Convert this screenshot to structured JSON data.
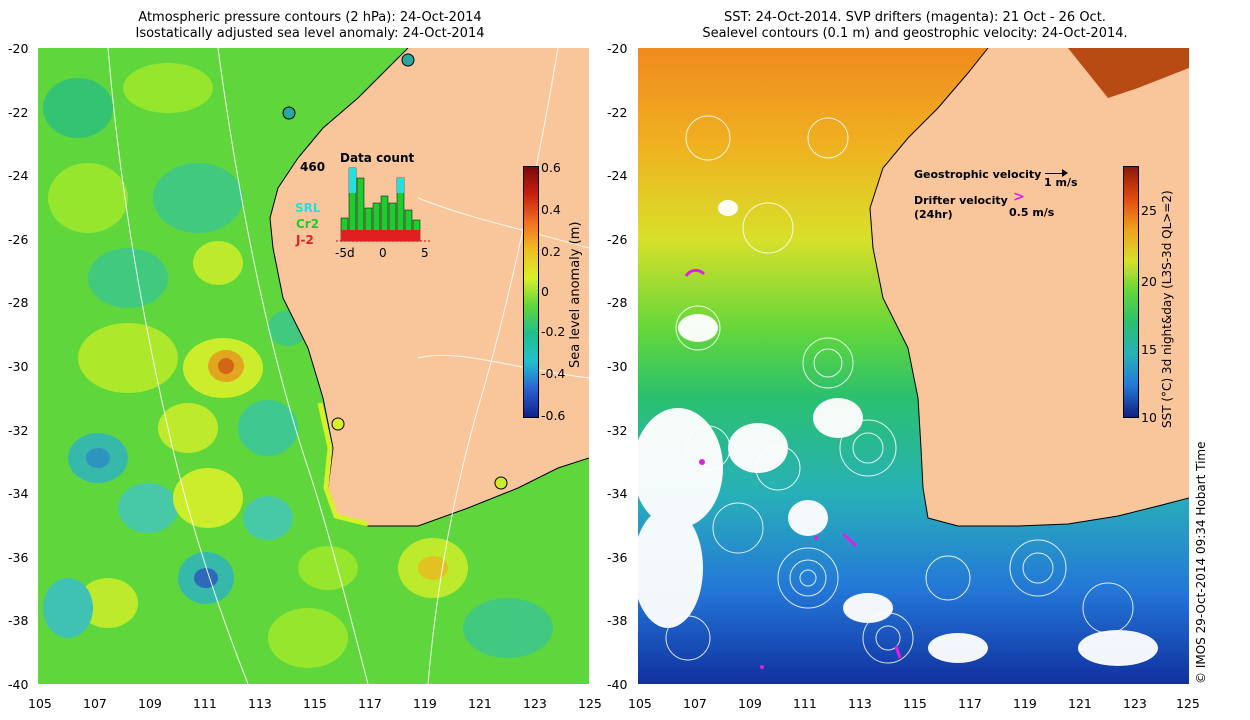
{
  "left_panel": {
    "title_line1": "Atmospheric pressure contours (2 hPa): 24-Oct-2014",
    "title_line2": "Isostatically adjusted sea level anomaly: 24-Oct-2014",
    "colorbar_label": "Sea level anomaly (m)",
    "colorbar_ticks": [
      "0.6",
      "0.4",
      "0.2",
      "0",
      "-0.2",
      "-0.4",
      "-0.6"
    ],
    "inset": {
      "count_label": "460",
      "title": "Data count",
      "legend": [
        "SRL",
        "Cr2",
        "J-2"
      ],
      "x_ticks": [
        "-5d",
        "0",
        "5"
      ]
    }
  },
  "right_panel": {
    "title_line1": "SST: 24-Oct-2014. SVP drifters (magenta): 21 Oct - 26 Oct.",
    "title_line2": "Sealevel contours (0.1 m) and geostrophic velocity: 24-Oct-2014.",
    "colorbar_label": "SST (°C) 3d night&day (L3S-3d QL>=2)",
    "colorbar_ticks": [
      "25",
      "20",
      "15",
      "10"
    ],
    "geo_label": "Geostrophic velocity",
    "geo_scale": "1 m/s",
    "drifter_label": "Drifter velocity",
    "drifter_sub": "(24hr)",
    "drifter_scale": "0.5 m/s"
  },
  "axes": {
    "x_ticks": [
      "105",
      "107",
      "109",
      "111",
      "113",
      "115",
      "117",
      "119",
      "121",
      "123",
      "125"
    ],
    "y_ticks": [
      "-20",
      "-22",
      "-24",
      "-26",
      "-28",
      "-30",
      "-32",
      "-34",
      "-36",
      "-38",
      "-40"
    ]
  },
  "credit": "© IMOS 29-Oct-2014 09:34 Hobart Time",
  "colors": {
    "land": "#f9c69c",
    "sla_base": "#5fd63c",
    "sst_warm": "#f0a01e",
    "sst_cool": "#2aa8a0",
    "drifter": "#e020e0"
  }
}
